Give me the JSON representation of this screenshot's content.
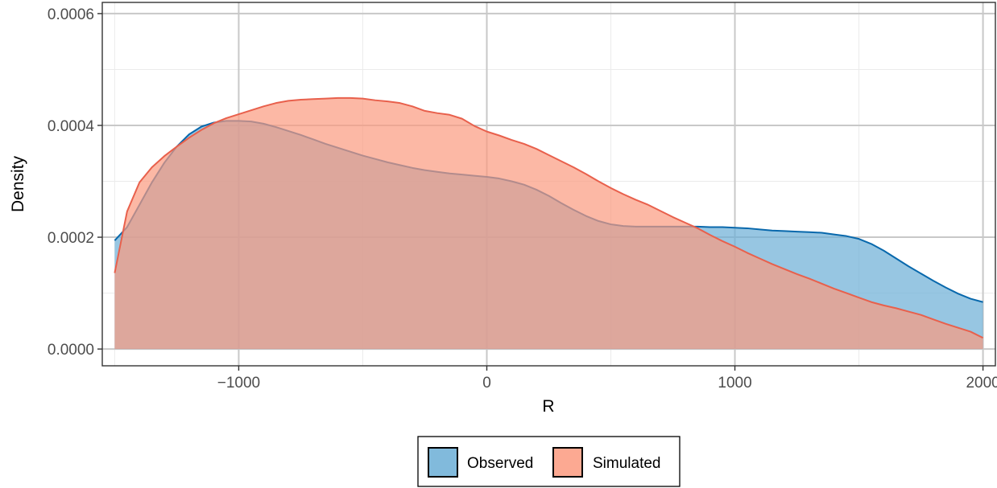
{
  "chart_data": {
    "type": "area",
    "title": "",
    "xlabel": "R",
    "ylabel": "Density",
    "xlim": [
      -1550,
      2050
    ],
    "ylim": [
      -3e-05,
      0.00062
    ],
    "x_ticks": [
      -1000,
      0,
      1000,
      2000
    ],
    "x_tick_labels": [
      "−1000",
      "0",
      "1000",
      "2000"
    ],
    "y_ticks": [
      0,
      0.0002,
      0.0004,
      0.0006
    ],
    "y_tick_labels": [
      "0.0000",
      "0.0002",
      "0.0004",
      "0.0006"
    ],
    "grid": true,
    "legend_position": "bottom",
    "series": [
      {
        "name": "Observed",
        "fill": "#6baed6",
        "line": "#0868ac",
        "x": [
          -1500,
          -1450,
          -1400,
          -1350,
          -1300,
          -1250,
          -1200,
          -1150,
          -1100,
          -1050,
          -1000,
          -950,
          -900,
          -850,
          -800,
          -750,
          -700,
          -650,
          -600,
          -550,
          -500,
          -450,
          -400,
          -350,
          -300,
          -250,
          -200,
          -150,
          -100,
          -50,
          0,
          50,
          100,
          150,
          200,
          250,
          300,
          350,
          400,
          450,
          500,
          550,
          600,
          650,
          700,
          750,
          800,
          850,
          900,
          950,
          1000,
          1050,
          1100,
          1150,
          1200,
          1250,
          1300,
          1350,
          1400,
          1450,
          1500,
          1550,
          1600,
          1650,
          1700,
          1750,
          1800,
          1850,
          1900,
          1950,
          2000
        ],
        "y": [
          0.000194,
          0.000218,
          0.000258,
          0.000298,
          0.000333,
          0.000362,
          0.000384,
          0.000398,
          0.000405,
          0.000408,
          0.000408,
          0.000407,
          0.000403,
          0.000397,
          0.00039,
          0.000383,
          0.000375,
          0.000367,
          0.00036,
          0.000353,
          0.000346,
          0.00034,
          0.000334,
          0.000329,
          0.000324,
          0.00032,
          0.000317,
          0.000314,
          0.000312,
          0.00031,
          0.000308,
          0.000305,
          0.0003,
          0.000294,
          0.000285,
          0.000274,
          0.000261,
          0.000249,
          0.000238,
          0.000229,
          0.000223,
          0.00022,
          0.000219,
          0.000219,
          0.000219,
          0.000219,
          0.000219,
          0.000219,
          0.000218,
          0.000218,
          0.000217,
          0.000216,
          0.000214,
          0.000212,
          0.000211,
          0.00021,
          0.000209,
          0.000208,
          0.000205,
          0.000202,
          0.000197,
          0.000188,
          0.000176,
          0.000162,
          0.000148,
          0.000135,
          0.000122,
          0.00011,
          9.9e-05,
          9e-05,
          8.4e-05
        ]
      },
      {
        "name": "Simulated",
        "fill": "#fb9a7f",
        "line": "#e8604c",
        "x": [
          -1500,
          -1450,
          -1400,
          -1350,
          -1300,
          -1250,
          -1200,
          -1150,
          -1100,
          -1050,
          -1000,
          -950,
          -900,
          -850,
          -800,
          -750,
          -700,
          -650,
          -600,
          -550,
          -500,
          -450,
          -400,
          -350,
          -300,
          -250,
          -200,
          -150,
          -100,
          -50,
          0,
          50,
          100,
          150,
          200,
          250,
          300,
          350,
          400,
          450,
          500,
          550,
          600,
          650,
          700,
          750,
          800,
          850,
          900,
          950,
          1000,
          1050,
          1100,
          1150,
          1200,
          1250,
          1300,
          1350,
          1400,
          1450,
          1500,
          1550,
          1600,
          1650,
          1700,
          1750,
          1800,
          1850,
          1900,
          1950,
          2000
        ],
        "y": [
          0.000136,
          0.000246,
          0.000298,
          0.000325,
          0.000345,
          0.000362,
          0.000378,
          0.000392,
          0.000404,
          0.000413,
          0.00042,
          0.000427,
          0.000434,
          0.00044,
          0.000444,
          0.000446,
          0.000447,
          0.000448,
          0.000449,
          0.000449,
          0.000448,
          0.000445,
          0.000443,
          0.00044,
          0.000434,
          0.000426,
          0.000422,
          0.000419,
          0.000412,
          0.000399,
          0.000389,
          0.000382,
          0.000374,
          0.000367,
          0.000358,
          0.000347,
          0.000336,
          0.000325,
          0.000313,
          0.0003,
          0.000288,
          0.000277,
          0.000267,
          0.000258,
          0.000247,
          0.000236,
          0.000226,
          0.000216,
          0.000204,
          0.000193,
          0.000183,
          0.000172,
          0.000162,
          0.000152,
          0.000143,
          0.000134,
          0.000126,
          0.000117,
          0.000108,
          0.0001,
          9.2e-05,
          8.4e-05,
          7.8e-05,
          7.3e-05,
          6.7e-05,
          6.1e-05,
          5.3e-05,
          4.5e-05,
          3.8e-05,
          3.1e-05,
          2e-05
        ]
      }
    ]
  }
}
